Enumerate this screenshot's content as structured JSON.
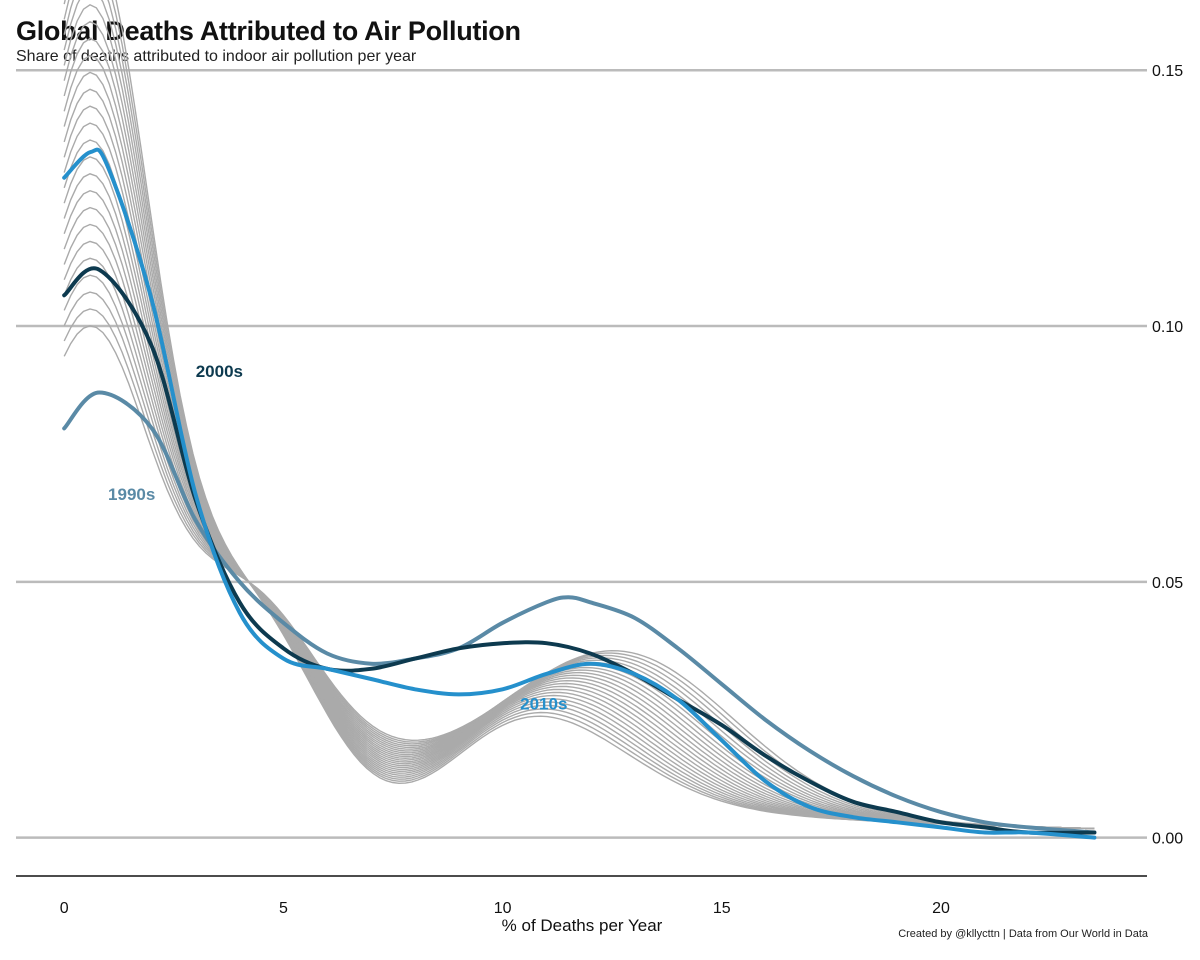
{
  "title": "Global Deaths Attributed to Air Pollution",
  "subtitle": "Share of deaths attributed to indoor air pollution per year",
  "caption": "Created by @kllycttn | Data from Our World in Data",
  "colors": {
    "background_years": "#aaaaaa",
    "1990s": "#5a8aa6",
    "2000s": "#0d3a4f",
    "2010s": "#2590cc",
    "grid": "#bbbbbb"
  },
  "chart_data": {
    "type": "line",
    "xlabel": "% of Deaths per Year",
    "ylabel": "",
    "xlim": [
      -1.1,
      24.7
    ],
    "ylim": [
      -0.0075,
      0.152
    ],
    "x_ticks": [
      0,
      5,
      10,
      15,
      20
    ],
    "y_ticks": [
      "0.00",
      "0.05",
      "0.10",
      "0.15"
    ],
    "y_axis_position": "right",
    "grid": "horizontal",
    "x_domain": [
      0,
      23.5
    ],
    "background_curves": {
      "count": 24,
      "description": "one density curve per year, drawn in gray"
    },
    "series": [
      {
        "name": "1990s",
        "x": [
          0,
          0.8,
          2,
          3,
          4,
          5,
          6,
          7,
          8,
          9,
          10,
          11,
          11.5,
          12,
          13,
          14,
          15,
          16,
          17,
          18,
          19,
          20,
          21,
          22,
          23.5
        ],
        "values": [
          0.08,
          0.087,
          0.08,
          0.062,
          0.05,
          0.042,
          0.036,
          0.034,
          0.035,
          0.037,
          0.042,
          0.046,
          0.047,
          0.046,
          0.043,
          0.037,
          0.03,
          0.023,
          0.017,
          0.012,
          0.008,
          0.005,
          0.003,
          0.002,
          0.001
        ]
      },
      {
        "name": "2000s",
        "x": [
          0,
          0.8,
          2,
          3,
          4,
          5,
          6,
          7,
          8,
          9,
          10,
          11,
          12,
          13,
          14,
          15,
          16,
          17,
          18,
          19,
          20,
          21,
          22,
          23.5
        ],
        "values": [
          0.106,
          0.111,
          0.096,
          0.066,
          0.046,
          0.037,
          0.033,
          0.033,
          0.035,
          0.037,
          0.038,
          0.038,
          0.036,
          0.032,
          0.027,
          0.022,
          0.016,
          0.011,
          0.007,
          0.005,
          0.003,
          0.002,
          0.001,
          0.001
        ]
      },
      {
        "name": "2010s",
        "x": [
          0,
          0.6,
          1,
          2,
          3,
          4,
          5,
          6,
          7,
          8,
          9,
          10,
          11,
          12,
          13,
          14,
          15,
          16,
          17,
          18,
          19,
          20,
          21,
          22,
          23.5
        ],
        "values": [
          0.129,
          0.134,
          0.131,
          0.105,
          0.067,
          0.044,
          0.035,
          0.033,
          0.031,
          0.029,
          0.028,
          0.029,
          0.032,
          0.034,
          0.032,
          0.027,
          0.019,
          0.011,
          0.006,
          0.004,
          0.003,
          0.002,
          0.001,
          0.001,
          0.0
        ]
      }
    ],
    "annotations": [
      {
        "text": "1990s",
        "x": 1.0,
        "y": 0.066
      },
      {
        "text": "2000s",
        "x": 3.0,
        "y": 0.09
      },
      {
        "text": "2010s",
        "x": 10.4,
        "y": 0.025
      }
    ]
  }
}
